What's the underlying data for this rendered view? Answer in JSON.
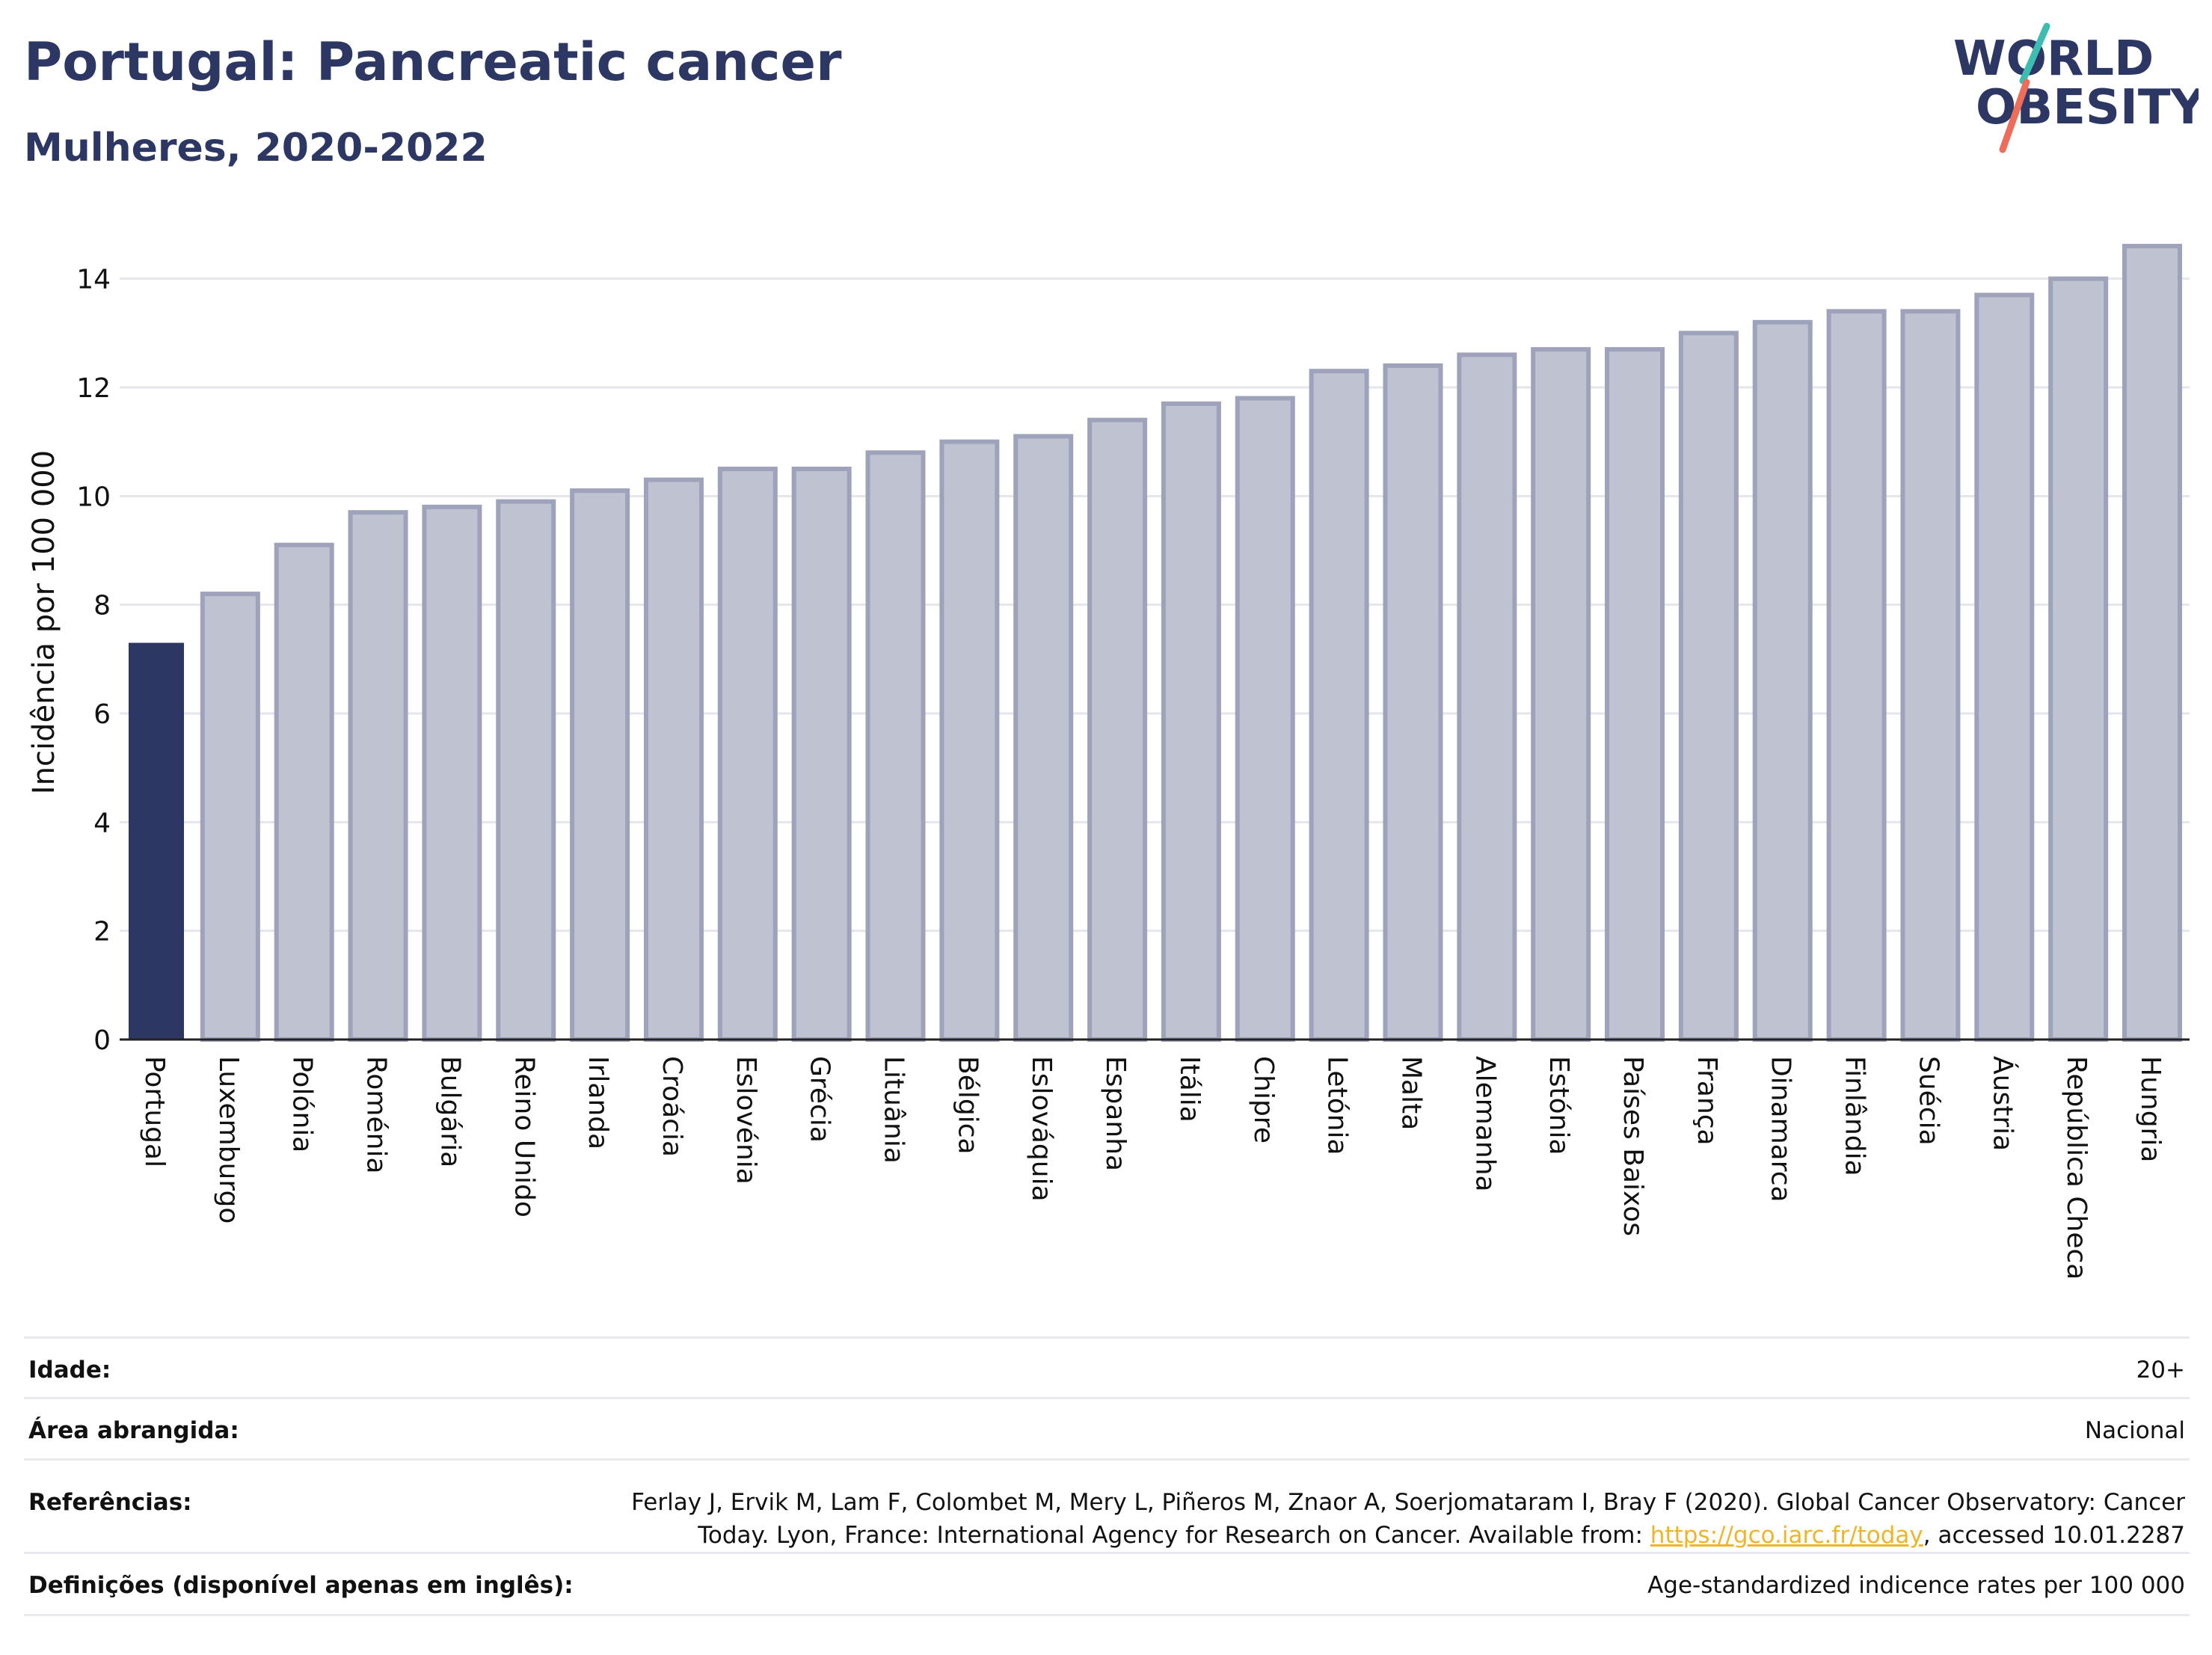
{
  "header": {
    "title": "Portugal: Pancreatic cancer",
    "subtitle": "Mulheres, 2020-2022"
  },
  "logo": {
    "line1": "WORLD",
    "line2": "OBESITY"
  },
  "colors": {
    "highlight": "#2c3764",
    "bar_fill": "#bfc2d0",
    "bar_stroke": "#9ea3bb",
    "grid": "#e5e6eb",
    "logo_text": "#2c3764",
    "logo_slash_teal": "#3dbdb2",
    "logo_slash_coral": "#ee6c5a",
    "link": "#f0b429"
  },
  "chart_data": {
    "type": "bar",
    "ylabel": "Incidência por 100 000",
    "ylim": [
      0,
      15
    ],
    "yticks": [
      0,
      2,
      4,
      6,
      8,
      10,
      12,
      14
    ],
    "grid": true,
    "highlighted_category": "Portugal",
    "categories": [
      "Portugal",
      "Luxemburgo",
      "Polónia",
      "Roménia",
      "Bulgária",
      "Reino Unido",
      "Irlanda",
      "Croácia",
      "Eslovénia",
      "Grécia",
      "Lituânia",
      "Bélgica",
      "Eslováquia",
      "Espanha",
      "Itália",
      "Chipre",
      "Letónia",
      "Malta",
      "Alemanha",
      "Estónia",
      "Países Baixos",
      "França",
      "Dinamarca",
      "Finlândia",
      "Suécia",
      "Áustria",
      "República Checa",
      "Hungria"
    ],
    "values": [
      7.3,
      8.2,
      9.1,
      9.7,
      9.8,
      9.9,
      10.1,
      10.3,
      10.5,
      10.5,
      10.8,
      11.0,
      11.1,
      11.4,
      11.7,
      11.8,
      12.3,
      12.4,
      12.6,
      12.7,
      12.7,
      13.0,
      13.2,
      13.4,
      13.4,
      13.7,
      14.0,
      14.6
    ]
  },
  "info": {
    "age_label": "Idade:",
    "age_value": "20+",
    "area_label": "Área abrangida:",
    "area_value": "Nacional",
    "refs_label": "Referências:",
    "refs_line1": "Ferlay J, Ervik M, Lam F, Colombet M, Mery L, Piñeros M, Znaor A, Soerjomataram I, Bray F (2020). Global Cancer Observatory: Cancer",
    "refs_line2_pre": "Today. Lyon, France: International Agency for Research on Cancer. Available from: ",
    "refs_link": "https://gco.iarc.fr/today",
    "refs_line2_post": ", accessed 10.01.2287",
    "defs_label": "Definições (disponível apenas em inglês):",
    "defs_value": "Age-standardized indicence rates per 100 000"
  }
}
